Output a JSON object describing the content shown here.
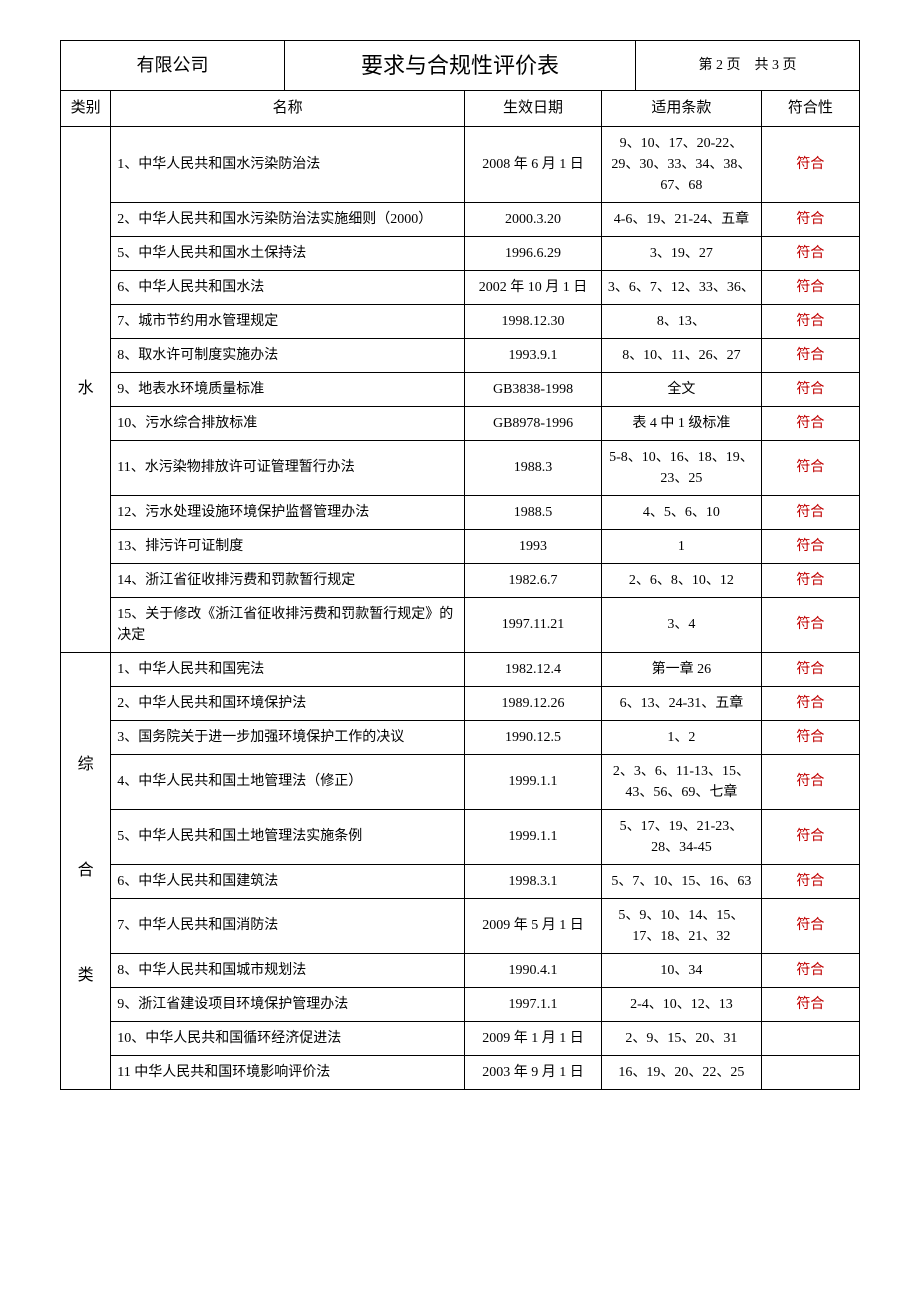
{
  "header": {
    "company": "有限公司",
    "title": "要求与合规性评价表",
    "page": "第 2 页　共 3 页"
  },
  "columns": {
    "category": "类别",
    "name": "名称",
    "date": "生效日期",
    "clause": "适用条款",
    "fit": "符合性"
  },
  "groups": [
    {
      "category": "水",
      "rows": [
        {
          "name": "1、中华人民共和国水污染防治法",
          "date": "2008 年 6 月 1 日",
          "clause": "9、10、17、20-22、29、30、33、34、38、67、68",
          "fit": "符合"
        },
        {
          "name": "2、中华人民共和国水污染防治法实施细则（2000）",
          "date": "2000.3.20",
          "clause": "4-6、19、21-24、五章",
          "fit": "符合"
        },
        {
          "name": "5、中华人民共和国水土保持法",
          "date": "1996.6.29",
          "clause": "3、19、27",
          "fit": "符合"
        },
        {
          "name": "6、中华人民共和国水法",
          "date": "2002 年 10 月 1 日",
          "clause": "3、6、7、12、33、36、",
          "fit": "符合"
        },
        {
          "name": "7、城市节约用水管理规定",
          "date": "1998.12.30",
          "clause": "8、13、",
          "fit": "符合"
        },
        {
          "name": "8、取水许可制度实施办法",
          "date": "1993.9.1",
          "clause": "8、10、11、26、27",
          "fit": "符合"
        },
        {
          "name": "9、地表水环境质量标准",
          "date": "GB3838-1998",
          "clause": "全文",
          "fit": "符合"
        },
        {
          "name": "10、污水综合排放标准",
          "date": "GB8978-1996",
          "clause": "表 4 中 1 级标准",
          "fit": "符合"
        },
        {
          "name": "11、水污染物排放许可证管理暂行办法",
          "date": "1988.3",
          "clause": "5-8、10、16、18、19、23、25",
          "fit": "符合"
        },
        {
          "name": "12、污水处理设施环境保护监督管理办法",
          "date": "1988.5",
          "clause": "4、5、6、10",
          "fit": "符合"
        },
        {
          "name": "13、排污许可证制度",
          "date": "1993",
          "clause": "1",
          "fit": "符合"
        },
        {
          "name": "14、浙江省征收排污费和罚款暂行规定",
          "date": "1982.6.7",
          "clause": "2、6、8、10、12",
          "fit": "符合"
        },
        {
          "name": "15、关于修改《浙江省征收排污费和罚款暂行规定》的决定",
          "date": "1997.11.21",
          "clause": "3、4",
          "fit": "符合"
        }
      ]
    },
    {
      "category": "综\n\n合\n\n类",
      "rows": [
        {
          "name": "1、中华人民共和国宪法",
          "date": "1982.12.4",
          "clause": "第一章 26",
          "fit": "符合"
        },
        {
          "name": "2、中华人民共和国环境保护法",
          "date": "1989.12.26",
          "clause": "6、13、24-31、五章",
          "fit": "符合"
        },
        {
          "name": "3、国务院关于进一步加强环境保护工作的决议",
          "date": "1990.12.5",
          "clause": "1、2",
          "fit": "符合"
        },
        {
          "name": "4、中华人民共和国土地管理法（修正）",
          "date": "1999.1.1",
          "clause": "2、3、6、11-13、15、43、56、69、七章",
          "fit": "符合"
        },
        {
          "name": "5、中华人民共和国土地管理法实施条例",
          "date": "1999.1.1",
          "clause": "5、17、19、21-23、28、34-45",
          "fit": "符合"
        },
        {
          "name": "6、中华人民共和国建筑法",
          "date": "1998.3.1",
          "clause": "5、7、10、15、16、63",
          "fit": "符合"
        },
        {
          "name": "7、中华人民共和国消防法",
          "date": "2009 年 5 月 1 日",
          "clause": "5、9、10、14、15、17、18、21、32",
          "fit": "符合"
        },
        {
          "name": "8、中华人民共和国城市规划法",
          "date": "1990.4.1",
          "clause": "10、34",
          "fit": "符合"
        },
        {
          "name": "9、浙江省建设项目环境保护管理办法",
          "date": "1997.1.1",
          "clause": "2-4、10、12、13",
          "fit": "符合"
        },
        {
          "name": "10、中华人民共和国循环经济促进法",
          "date": "2009 年 1 月 1 日",
          "clause": "2、9、15、20、31",
          "fit": ""
        },
        {
          "name": "11 中华人民共和国环境影响评价法",
          "date": "2003 年 9 月 1 日",
          "clause": "16、19、20、22、25",
          "fit": ""
        }
      ]
    }
  ]
}
